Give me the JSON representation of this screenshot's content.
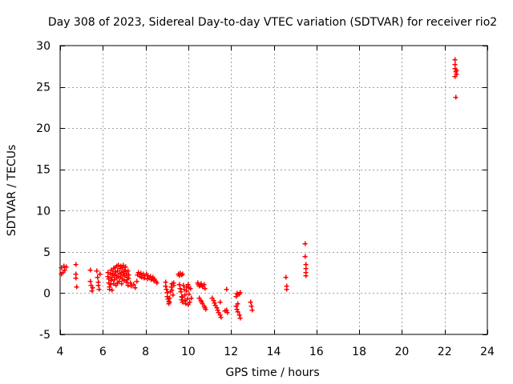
{
  "chart_data": {
    "type": "scatter",
    "title": "Day 308 of 2023, Sidereal Day-to-day VTEC variation (SDTVAR) for receiver rio2",
    "xlabel": "GPS time / hours",
    "ylabel": "SDTVAR / TECUs",
    "xlim": [
      4,
      24
    ],
    "ylim": [
      -5,
      30
    ],
    "xticks": [
      4,
      6,
      8,
      10,
      12,
      14,
      16,
      18,
      20,
      22,
      24
    ],
    "yticks": [
      -5,
      0,
      5,
      10,
      15,
      20,
      25,
      30
    ],
    "grid": true,
    "marker": "plus",
    "color": "#ff0000",
    "series": [
      {
        "name": "SDTVAR",
        "points": [
          [
            4.05,
            3.1
          ],
          [
            4.1,
            2.6
          ],
          [
            4.15,
            3.3
          ],
          [
            4.2,
            2.9
          ],
          [
            4.25,
            3.2
          ],
          [
            4.05,
            2.4
          ],
          [
            4.7,
            3.5
          ],
          [
            4.7,
            2.4
          ],
          [
            4.72,
            1.9
          ],
          [
            4.75,
            0.8
          ],
          [
            5.4,
            2.9
          ],
          [
            5.4,
            1.5
          ],
          [
            5.42,
            1.0
          ],
          [
            5.45,
            0.3
          ],
          [
            5.5,
            0.7
          ],
          [
            5.7,
            2.8
          ],
          [
            5.72,
            2.0
          ],
          [
            5.75,
            1.4
          ],
          [
            5.78,
            1.0
          ],
          [
            5.8,
            0.5
          ],
          [
            5.82,
            2.4
          ],
          [
            6.2,
            2.6
          ],
          [
            6.22,
            2.1
          ],
          [
            6.24,
            1.8
          ],
          [
            6.26,
            1.3
          ],
          [
            6.28,
            0.8
          ],
          [
            6.3,
            0.5
          ],
          [
            6.32,
            1.1
          ],
          [
            6.34,
            2.4
          ],
          [
            6.36,
            2.9
          ],
          [
            6.38,
            1.6
          ],
          [
            6.4,
            0.4
          ],
          [
            6.42,
            2.0
          ],
          [
            6.44,
            2.5
          ],
          [
            6.46,
            3.0
          ],
          [
            6.48,
            1.2
          ],
          [
            6.5,
            2.2
          ],
          [
            6.52,
            1.7
          ],
          [
            6.54,
            3.1
          ],
          [
            6.56,
            2.7
          ],
          [
            6.58,
            1.0
          ],
          [
            6.6,
            2.3
          ],
          [
            6.62,
            3.3
          ],
          [
            6.64,
            1.9
          ],
          [
            6.66,
            1.3
          ],
          [
            6.68,
            2.8
          ],
          [
            6.7,
            3.4
          ],
          [
            6.72,
            2.1
          ],
          [
            6.74,
            1.5
          ],
          [
            6.76,
            3.0
          ],
          [
            6.78,
            2.5
          ],
          [
            6.8,
            3.3
          ],
          [
            6.82,
            2.0
          ],
          [
            6.84,
            1.2
          ],
          [
            6.86,
            2.6
          ],
          [
            6.88,
            3.1
          ],
          [
            6.9,
            1.8
          ],
          [
            6.92,
            2.3
          ],
          [
            6.94,
            3.4
          ],
          [
            6.96,
            2.7
          ],
          [
            6.98,
            1.6
          ],
          [
            7.0,
            2.9
          ],
          [
            7.02,
            2.2
          ],
          [
            7.04,
            3.2
          ],
          [
            7.06,
            1.4
          ],
          [
            7.08,
            2.5
          ],
          [
            7.1,
            2.0
          ],
          [
            7.12,
            1.7
          ],
          [
            7.14,
            2.8
          ],
          [
            7.16,
            1.0
          ],
          [
            7.18,
            2.3
          ],
          [
            7.2,
            1.9
          ],
          [
            7.25,
            1.3
          ],
          [
            7.3,
            0.9
          ],
          [
            7.4,
            1.1
          ],
          [
            7.5,
            0.7
          ],
          [
            7.55,
            1.5
          ],
          [
            7.6,
            2.3
          ],
          [
            7.65,
            2.6
          ],
          [
            7.7,
            2.1
          ],
          [
            7.75,
            2.5
          ],
          [
            7.8,
            2.0
          ],
          [
            7.85,
            2.4
          ],
          [
            7.9,
            1.9
          ],
          [
            7.95,
            2.2
          ],
          [
            8.0,
            2.4
          ],
          [
            8.05,
            1.8
          ],
          [
            8.1,
            2.2
          ],
          [
            8.15,
            1.9
          ],
          [
            8.2,
            2.1
          ],
          [
            8.25,
            1.7
          ],
          [
            8.3,
            2.0
          ],
          [
            8.35,
            1.6
          ],
          [
            8.4,
            1.8
          ],
          [
            8.45,
            1.5
          ],
          [
            8.5,
            1.3
          ],
          [
            8.9,
            1.4
          ],
          [
            8.92,
            0.9
          ],
          [
            8.95,
            0.5
          ],
          [
            8.98,
            0.1
          ],
          [
            9.0,
            -0.3
          ],
          [
            9.02,
            -0.6
          ],
          [
            9.05,
            -0.9
          ],
          [
            9.08,
            -1.2
          ],
          [
            9.1,
            -1.0
          ],
          [
            9.12,
            -0.5
          ],
          [
            9.15,
            0.2
          ],
          [
            9.18,
            0.8
          ],
          [
            9.2,
            1.2
          ],
          [
            9.22,
            0.4
          ],
          [
            9.25,
            -0.2
          ],
          [
            9.28,
            1.3
          ],
          [
            9.3,
            1.0
          ],
          [
            9.5,
            2.4
          ],
          [
            9.55,
            2.2
          ],
          [
            9.6,
            2.5
          ],
          [
            9.65,
            2.3
          ],
          [
            9.7,
            2.4
          ],
          [
            9.55,
            1.1
          ],
          [
            9.6,
            0.6
          ],
          [
            9.62,
            0.2
          ],
          [
            9.65,
            -0.3
          ],
          [
            9.68,
            -0.7
          ],
          [
            9.7,
            -1.0
          ],
          [
            9.72,
            -0.4
          ],
          [
            9.75,
            1.0
          ],
          [
            9.78,
            0.5
          ],
          [
            9.8,
            -0.2
          ],
          [
            9.82,
            -0.8
          ],
          [
            9.85,
            -1.2
          ],
          [
            9.88,
            0.8
          ],
          [
            9.9,
            0.3
          ],
          [
            9.92,
            -0.6
          ],
          [
            9.95,
            -1.3
          ],
          [
            9.98,
            1.1
          ],
          [
            10.0,
            0.7
          ],
          [
            10.02,
            -0.1
          ],
          [
            10.05,
            -1.0
          ],
          [
            10.08,
            0.6
          ],
          [
            10.1,
            -0.5
          ],
          [
            10.4,
            1.3
          ],
          [
            10.45,
            1.1
          ],
          [
            10.5,
            0.9
          ],
          [
            10.55,
            1.2
          ],
          [
            10.6,
            1.0
          ],
          [
            10.65,
            0.8
          ],
          [
            10.7,
            1.1
          ],
          [
            10.75,
            0.6
          ],
          [
            10.5,
            -0.5
          ],
          [
            10.55,
            -0.8
          ],
          [
            10.6,
            -1.0
          ],
          [
            10.65,
            -1.2
          ],
          [
            10.7,
            -1.5
          ],
          [
            10.75,
            -1.7
          ],
          [
            10.8,
            -1.9
          ],
          [
            11.1,
            -0.5
          ],
          [
            11.15,
            -0.8
          ],
          [
            11.2,
            -1.1
          ],
          [
            11.25,
            -1.4
          ],
          [
            11.3,
            -1.7
          ],
          [
            11.35,
            -2.0
          ],
          [
            11.4,
            -2.3
          ],
          [
            11.45,
            -2.6
          ],
          [
            11.5,
            -2.9
          ],
          [
            11.45,
            -1.0
          ],
          [
            11.75,
            0.5
          ],
          [
            11.75,
            -2.0
          ],
          [
            11.8,
            -2.3
          ],
          [
            11.7,
            -2.1
          ],
          [
            12.2,
            -0.3
          ],
          [
            12.25,
            0.0
          ],
          [
            12.3,
            -0.2
          ],
          [
            12.35,
            -0.1
          ],
          [
            12.4,
            0.1
          ],
          [
            12.2,
            -1.5
          ],
          [
            12.25,
            -1.9
          ],
          [
            12.3,
            -2.2
          ],
          [
            12.35,
            -2.6
          ],
          [
            12.4,
            -3.0
          ],
          [
            12.3,
            -1.2
          ],
          [
            12.9,
            -1.0
          ],
          [
            12.92,
            -1.5
          ],
          [
            12.95,
            -2.0
          ],
          [
            14.55,
            2.0
          ],
          [
            14.57,
            0.9
          ],
          [
            14.6,
            0.5
          ],
          [
            15.45,
            6.1
          ],
          [
            15.45,
            4.5
          ],
          [
            15.47,
            3.5
          ],
          [
            15.48,
            3.0
          ],
          [
            15.5,
            2.6
          ],
          [
            15.5,
            2.2
          ],
          [
            22.45,
            28.4
          ],
          [
            22.47,
            27.8
          ],
          [
            22.48,
            27.3
          ],
          [
            22.5,
            26.9
          ],
          [
            22.52,
            26.6
          ],
          [
            22.45,
            26.3
          ],
          [
            22.55,
            27.1
          ],
          [
            22.5,
            23.8
          ]
        ]
      }
    ]
  }
}
